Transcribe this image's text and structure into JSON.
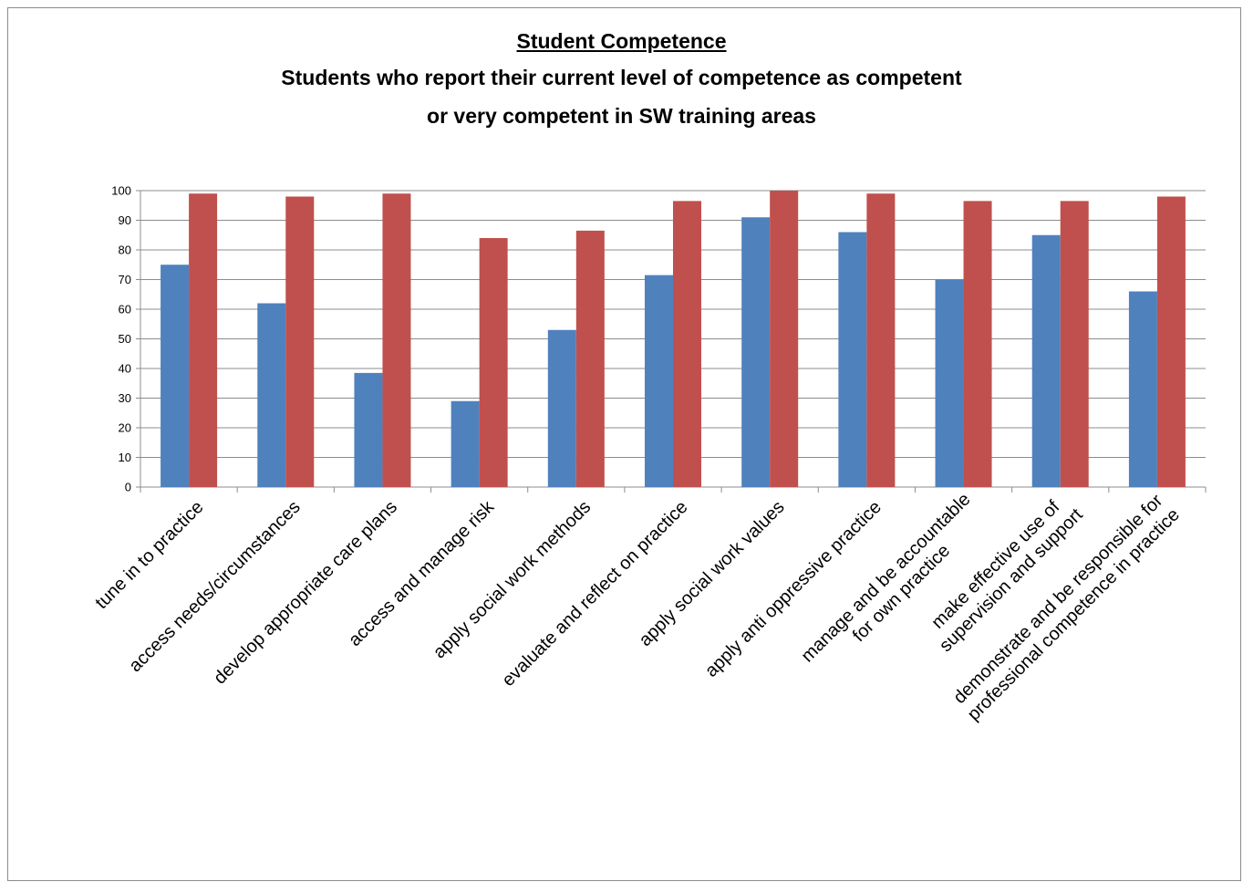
{
  "chart_data": {
    "type": "bar",
    "title": "Student Competence",
    "subtitle_lines": [
      "Students who report their current level of competence as competent",
      "or very competent in SW training areas"
    ],
    "categories": [
      [
        "tune in to practice"
      ],
      [
        "access needs/circumstances"
      ],
      [
        "develop appropriate care plans"
      ],
      [
        "access and manage risk"
      ],
      [
        "apply social work methods"
      ],
      [
        "evaluate and reflect on practice"
      ],
      [
        "apply social work values"
      ],
      [
        "apply anti oppressive practice"
      ],
      [
        "manage and be accountable",
        "for own practice"
      ],
      [
        "make effective use of",
        "supervision and support"
      ],
      [
        "demonstrate and be responsible for",
        "professional competence in practice"
      ]
    ],
    "series": [
      {
        "color": "#4F81BD",
        "values": [
          75,
          62,
          38.5,
          29,
          53,
          71.5,
          91,
          86,
          70,
          85,
          66
        ]
      },
      {
        "color": "#C0504D",
        "values": [
          99,
          98,
          99,
          84,
          86.5,
          96.5,
          100,
          99,
          96.5,
          96.5,
          98
        ]
      }
    ],
    "ylim": [
      0,
      100
    ],
    "yticks": [
      0,
      10,
      20,
      30,
      40,
      50,
      60,
      70,
      80,
      90,
      100
    ],
    "grid": true,
    "legend": "none",
    "xlabel": "",
    "ylabel": ""
  }
}
